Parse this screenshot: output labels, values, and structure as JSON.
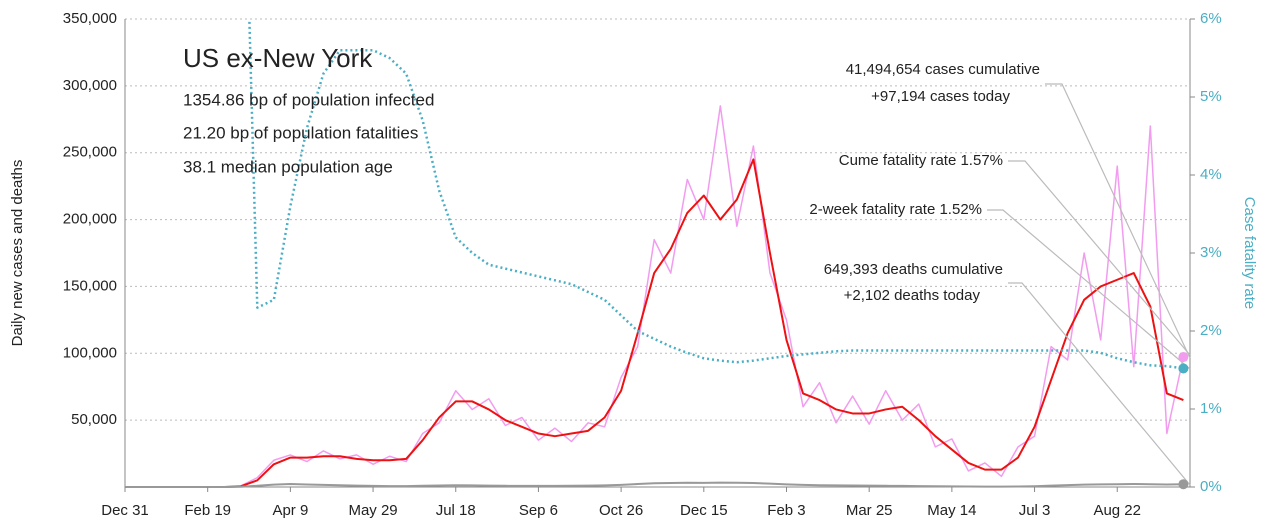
{
  "chart_data": {
    "type": "line",
    "title": "US ex-New York",
    "stats": [
      "1354.86 bp of population infected",
      "21.20 bp of population fatalities",
      "38.1 median population age"
    ],
    "annotations": [
      "41,494,654 cases cumulative",
      "+97,194 cases today",
      "Cume fatality rate 1.57%",
      "2-week fatality rate 1.52%",
      "649,393 deaths cumulative",
      "+2,102 deaths today"
    ],
    "ylabel": "Daily new cases and deaths",
    "y2label": "Case fatality rate",
    "xlim": [
      0,
      644
    ],
    "xticks": [
      {
        "value": 0,
        "label": "Dec 31"
      },
      {
        "value": 50,
        "label": "Feb 19"
      },
      {
        "value": 100,
        "label": "Apr 9"
      },
      {
        "value": 150,
        "label": "May 29"
      },
      {
        "value": 200,
        "label": "Jul 18"
      },
      {
        "value": 250,
        "label": "Sep 6"
      },
      {
        "value": 300,
        "label": "Oct 26"
      },
      {
        "value": 350,
        "label": "Dec 15"
      },
      {
        "value": 400,
        "label": "Feb 3"
      },
      {
        "value": 450,
        "label": "Mar 25"
      },
      {
        "value": 500,
        "label": "May 14"
      },
      {
        "value": 550,
        "label": "Jul 3"
      },
      {
        "value": 600,
        "label": "Aug 22"
      }
    ],
    "ylim": [
      0,
      350000
    ],
    "yticks": [
      {
        "value": 50000,
        "label": "50,000"
      },
      {
        "value": 100000,
        "label": "100,000"
      },
      {
        "value": 150000,
        "label": "150,000"
      },
      {
        "value": 200000,
        "label": "200,000"
      },
      {
        "value": 250000,
        "label": "250,000"
      },
      {
        "value": 300000,
        "label": "300,000"
      },
      {
        "value": 350000,
        "label": "350,000"
      }
    ],
    "y2lim": [
      0,
      6
    ],
    "y2ticks": [
      {
        "value": 0,
        "label": "0%"
      },
      {
        "value": 1,
        "label": "1%"
      },
      {
        "value": 2,
        "label": "2%"
      },
      {
        "value": 3,
        "label": "3%"
      },
      {
        "value": 4,
        "label": "4%"
      },
      {
        "value": 5,
        "label": "5%"
      },
      {
        "value": 6,
        "label": "6%"
      }
    ],
    "grid": true,
    "x": [
      0,
      10,
      20,
      30,
      40,
      50,
      60,
      70,
      80,
      90,
      100,
      110,
      120,
      130,
      140,
      150,
      160,
      170,
      180,
      190,
      200,
      210,
      220,
      230,
      240,
      250,
      260,
      270,
      280,
      290,
      300,
      310,
      320,
      330,
      340,
      350,
      360,
      370,
      380,
      390,
      400,
      410,
      420,
      430,
      440,
      450,
      460,
      470,
      480,
      490,
      500,
      510,
      520,
      530,
      540,
      550,
      560,
      570,
      580,
      590,
      600,
      610,
      620,
      630,
      640
    ],
    "series": [
      {
        "name": "Daily new cases",
        "color": "#f29cf0",
        "width": 1.5,
        "values": [
          0,
          0,
          0,
          0,
          0,
          0,
          0,
          800,
          7000,
          20000,
          24000,
          19000,
          27000,
          21000,
          24000,
          17000,
          23000,
          19000,
          40000,
          48000,
          72000,
          58000,
          66000,
          46000,
          52000,
          35000,
          44000,
          34000,
          48000,
          45000,
          82000,
          105000,
          185000,
          160000,
          230000,
          200000,
          285000,
          195000,
          255000,
          160000,
          125000,
          60000,
          78000,
          48000,
          68000,
          47000,
          72000,
          50000,
          62000,
          30000,
          36000,
          12000,
          18000,
          8000,
          30000,
          38000,
          105000,
          95000,
          175000,
          110000,
          240000,
          90000,
          270000,
          40000,
          97194
        ]
      },
      {
        "name": "7-day average cases",
        "color": "#ee1111",
        "width": 2,
        "values": [
          0,
          0,
          0,
          0,
          0,
          0,
          0,
          500,
          5000,
          17000,
          22000,
          22000,
          23000,
          23000,
          21000,
          20000,
          20000,
          21000,
          35000,
          52000,
          64000,
          64000,
          58000,
          50000,
          45000,
          40000,
          38000,
          40000,
          42000,
          52000,
          72000,
          115000,
          160000,
          178000,
          205000,
          218000,
          200000,
          215000,
          245000,
          175000,
          110000,
          70000,
          65000,
          58000,
          55000,
          55000,
          58000,
          60000,
          50000,
          38000,
          28000,
          18000,
          13000,
          13000,
          22000,
          45000,
          80000,
          115000,
          140000,
          150000,
          155000,
          160000,
          135000,
          70000,
          65000
        ]
      },
      {
        "name": "Daily deaths",
        "color": "#999999",
        "width": 2,
        "values": [
          0,
          0,
          0,
          0,
          0,
          0,
          0,
          200,
          900,
          1800,
          2200,
          1900,
          1600,
          1300,
          1000,
          800,
          700,
          700,
          900,
          1100,
          1300,
          1200,
          1000,
          900,
          800,
          800,
          800,
          900,
          1000,
          1200,
          1600,
          2200,
          2800,
          3000,
          3200,
          3100,
          3300,
          3200,
          3000,
          2500,
          2000,
          1600,
          1300,
          1200,
          1100,
          1000,
          900,
          800,
          700,
          600,
          500,
          400,
          300,
          300,
          400,
          600,
          1000,
          1400,
          1800,
          2000,
          2100,
          2200,
          2100,
          1900,
          2102
        ]
      },
      {
        "name": "Case fatality rate",
        "color": "#4aaec4",
        "width": 2.5,
        "dash": "2 3",
        "axis": "y2",
        "values": [
          null,
          null,
          null,
          null,
          null,
          null,
          null,
          10,
          2.3,
          2.4,
          3.6,
          4.6,
          5.3,
          5.6,
          5.6,
          5.6,
          5.5,
          5.3,
          4.7,
          3.8,
          3.2,
          3.0,
          2.85,
          2.8,
          2.75,
          2.7,
          2.65,
          2.6,
          2.5,
          2.4,
          2.2,
          2.0,
          1.9,
          1.8,
          1.72,
          1.65,
          1.62,
          1.6,
          1.62,
          1.65,
          1.68,
          1.7,
          1.72,
          1.74,
          1.75,
          1.75,
          1.75,
          1.75,
          1.75,
          1.75,
          1.75,
          1.75,
          1.75,
          1.75,
          1.75,
          1.75,
          1.75,
          1.75,
          1.75,
          1.72,
          1.65,
          1.6,
          1.56,
          1.55,
          1.52
        ]
      }
    ]
  }
}
